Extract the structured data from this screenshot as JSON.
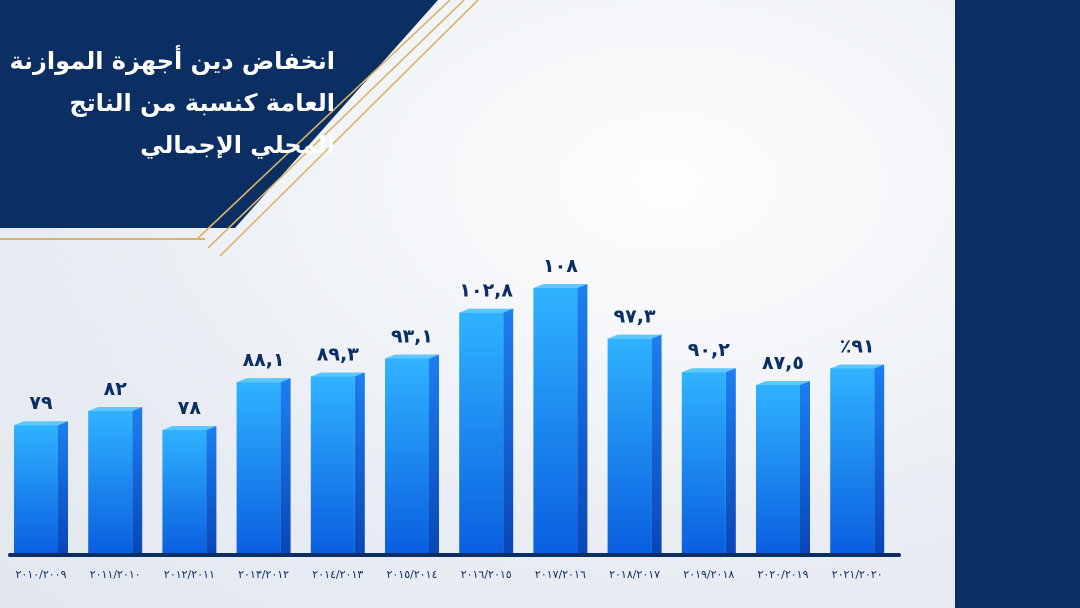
{
  "header": {
    "title_lines": [
      "انخفاض دين أجهزة الموازنة",
      "العامة كنسبة من الناتج",
      "المحلي الإجمالي"
    ]
  },
  "colors": {
    "navy": "#0c2f63",
    "bar_light": "#2fb3ff",
    "bar_dark": "#0a5fe0",
    "gold": "#d8b468",
    "axis": "#0c2f63"
  },
  "chart_data": {
    "type": "bar",
    "title": "انخفاض دين أجهزة الموازنة العامة كنسبة من الناتج المحلي الإجمالي",
    "categories": [
      "٢٠١٠/٢٠٠٩",
      "٢٠١١/٢٠١٠",
      "٢٠١٢/٢٠١١",
      "٢٠١٣/٢٠١٢",
      "٢٠١٤/٢٠١٣",
      "٢٠١٥/٢٠١٤",
      "٢٠١٦/٢٠١٥",
      "٢٠١٧/٢٠١٦",
      "٢٠١٨/٢٠١٧",
      "٢٠١٩/٢٠١٨",
      "٢٠٢٠/٢٠١٩",
      "٢٠٢١/٢٠٢٠"
    ],
    "values": [
      79,
      82,
      78,
      88.1,
      89.3,
      93.1,
      102.8,
      108,
      97.3,
      90.2,
      87.5,
      91
    ],
    "data_labels": [
      "٧٩",
      "٨٢",
      "٧٨",
      "٨٨,١",
      "٨٩,٣",
      "٩٣,١",
      "١٠٢,٨",
      "١٠٨",
      "٩٧,٣",
      "٩٠,٢",
      "٨٧,٥",
      "٪٩١"
    ],
    "xlabel": "",
    "ylabel": "",
    "grid": false,
    "legend": "none"
  }
}
